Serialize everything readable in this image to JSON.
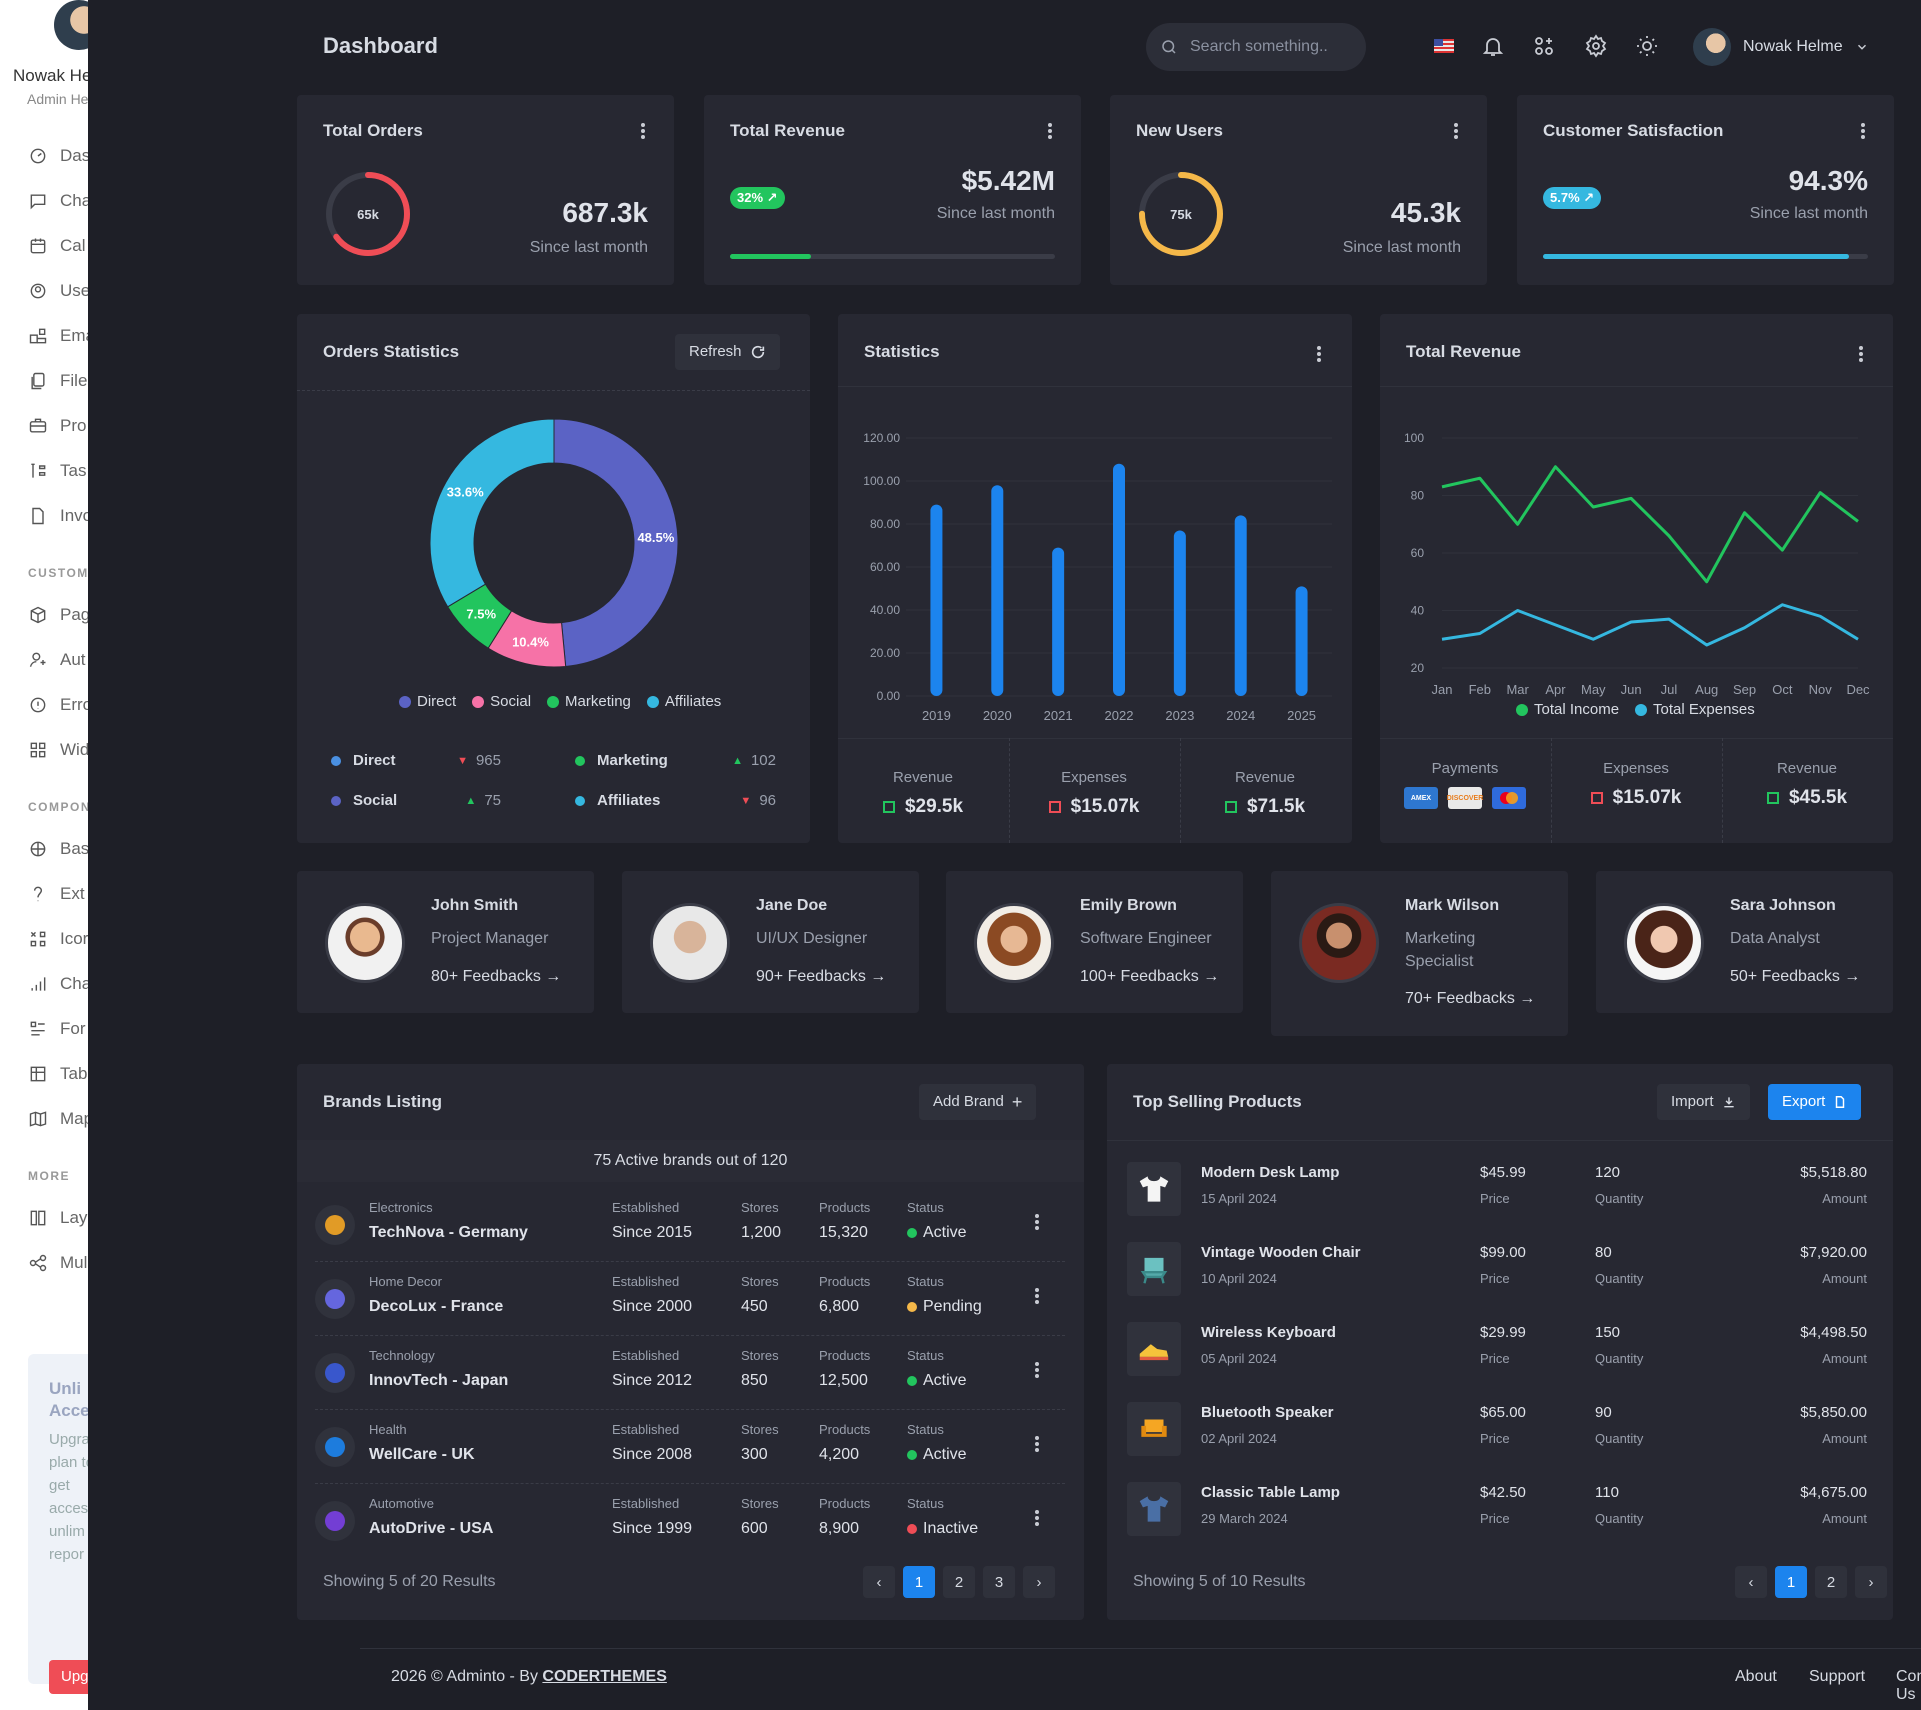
{
  "sidebar": {
    "user_name": "Nowak He",
    "user_role": "Admin He",
    "items": [
      {
        "label": "Das",
        "icon": "dashboard-icon"
      },
      {
        "label": "Cha",
        "icon": "chat-icon"
      },
      {
        "label": "Cal",
        "icon": "calendar-icon"
      },
      {
        "label": "Use",
        "icon": "user-icon"
      },
      {
        "label": "Ema",
        "icon": "email-icon"
      },
      {
        "label": "File",
        "icon": "file-icon"
      },
      {
        "label": "Pro",
        "icon": "briefcase-icon"
      },
      {
        "label": "Tas",
        "icon": "tasks-icon"
      },
      {
        "label": "Invo",
        "icon": "invoice-icon"
      }
    ],
    "section_custom": "CUSTOM",
    "custom_items": [
      {
        "label": "Pag",
        "icon": "box-icon"
      },
      {
        "label": "Aut",
        "icon": "auth-icon"
      },
      {
        "label": "Erro",
        "icon": "error-icon"
      },
      {
        "label": "Wid",
        "icon": "widget-icon"
      }
    ],
    "section_components": "COMPON",
    "component_items": [
      {
        "label": "Bas",
        "icon": "basketball-icon"
      },
      {
        "label": "Ext",
        "icon": "extended-icon"
      },
      {
        "label": "Icor",
        "icon": "icons-icon"
      },
      {
        "label": "Cha",
        "icon": "chart-icon"
      },
      {
        "label": "For",
        "icon": "form-icon"
      },
      {
        "label": "Tab",
        "icon": "table-icon"
      },
      {
        "label": "Map",
        "icon": "map-icon"
      }
    ],
    "section_more": "MORE",
    "more_items": [
      {
        "label": "Lay",
        "icon": "layout-icon"
      },
      {
        "label": "Mul",
        "icon": "share-icon"
      }
    ],
    "promo": {
      "title": "Unli Acce",
      "desc": "Upgra to plan to get acces to unlim repor",
      "button": "Upg"
    }
  },
  "header": {
    "title": "Dashboard",
    "search_placeholder": "Search something..",
    "user_name": "Nowak Helme"
  },
  "kpis": [
    {
      "title": "Total Orders",
      "value": "687.3k",
      "sub": "Since last month",
      "ring_label": "65k",
      "ring_color": "#ef4d56",
      "ring_fraction": 0.65
    },
    {
      "title": "Total Revenue",
      "value": "$5.42M",
      "sub": "Since last month",
      "pill": "32%",
      "pill_color": "#22c55e",
      "bar_fraction": 0.25,
      "bar_color": "#22c55e"
    },
    {
      "title": "New Users",
      "value": "45.3k",
      "sub": "Since last month",
      "ring_label": "75k",
      "ring_color": "#f5b849",
      "ring_fraction": 0.75
    },
    {
      "title": "Customer Satisfaction",
      "value": "94.3%",
      "sub": "Since last month",
      "pill": "5.7%",
      "pill_color": "#35b8e0",
      "bar_fraction": 0.943,
      "bar_color": "#35b8e0"
    }
  ],
  "orders_stats": {
    "title": "Orders Statistics",
    "refresh_label": "Refresh",
    "chart_data": {
      "type": "pie",
      "categories": [
        "Direct",
        "Social",
        "Marketing",
        "Affiliates"
      ],
      "values": [
        48.5,
        10.4,
        7.5,
        33.6
      ],
      "labels": [
        "48.5%",
        "10.4%",
        "7.5%",
        "33.6%"
      ],
      "colors": [
        "#5b63c5",
        "#f672a7",
        "#22c55e",
        "#35b8e0"
      ]
    },
    "rows": [
      {
        "name": "Direct",
        "value": "965",
        "trend": "down",
        "color": "#4a90e2"
      },
      {
        "name": "Marketing",
        "value": "102",
        "trend": "up",
        "color": "#22c55e"
      },
      {
        "name": "Social",
        "value": "75",
        "trend": "up",
        "color": "#5b63c5"
      },
      {
        "name": "Affiliates",
        "value": "96",
        "trend": "down",
        "color": "#35b8e0"
      }
    ]
  },
  "statistics": {
    "title": "Statistics",
    "chart_data": {
      "type": "bar",
      "categories": [
        "2019",
        "2020",
        "2021",
        "2022",
        "2023",
        "2024",
        "2025"
      ],
      "values": [
        89,
        98,
        69,
        108,
        77,
        84,
        51
      ],
      "ylim": [
        0,
        120
      ],
      "yticks": [
        "0.00",
        "20.00",
        "40.00",
        "60.00",
        "80.00",
        "100.00",
        "120.00"
      ],
      "color": "#1c84ee"
    },
    "summary": [
      {
        "label": "Revenue",
        "value": "$29.5k",
        "color": "#22c55e"
      },
      {
        "label": "Expenses",
        "value": "$15.07k",
        "color": "#ef4d56"
      },
      {
        "label": "Revenue",
        "value": "$71.5k",
        "color": "#22c55e"
      }
    ]
  },
  "total_revenue": {
    "title": "Total Revenue",
    "chart_data": {
      "type": "line",
      "x": [
        "Jan",
        "Feb",
        "Mar",
        "Apr",
        "May",
        "Jun",
        "Jul",
        "Aug",
        "Sep",
        "Oct",
        "Nov",
        "Dec"
      ],
      "series": [
        {
          "name": "Total Income",
          "color": "#22c55e",
          "values": [
            83,
            86,
            70,
            90,
            76,
            79,
            66,
            50,
            74,
            61,
            81,
            71
          ]
        },
        {
          "name": "Total Expenses",
          "color": "#35b8e0",
          "values": [
            30,
            32,
            40,
            35,
            30,
            36,
            37,
            28,
            34,
            42,
            38,
            30
          ]
        }
      ],
      "ylim": [
        20,
        100
      ],
      "yticks": [
        "20",
        "40",
        "60",
        "80",
        "100"
      ]
    },
    "summary": [
      {
        "label": "Payments"
      },
      {
        "label": "Expenses",
        "value": "$15.07k",
        "color": "#ef4d56"
      },
      {
        "label": "Revenue",
        "value": "$45.5k",
        "color": "#22c55e"
      }
    ],
    "payments": [
      "AMEX",
      "DISCOVER",
      "MC"
    ]
  },
  "people": [
    {
      "name": "John Smith",
      "role": "Project Manager",
      "feedback": "80+ Feedbacks →"
    },
    {
      "name": "Jane Doe",
      "role": "UI/UX Designer",
      "feedback": "90+ Feedbacks →"
    },
    {
      "name": "Emily Brown",
      "role": "Software Engineer",
      "feedback": "100+ Feedbacks →"
    },
    {
      "name": "Mark Wilson",
      "role": "Marketing Specialist",
      "feedback": "70+ Feedbacks →"
    },
    {
      "name": "Sara Johnson",
      "role": "Data Analyst",
      "feedback": "50+ Feedbacks →"
    }
  ],
  "brands": {
    "title": "Brands Listing",
    "add_label": "Add Brand",
    "subtitle": "75 Active brands out of 120",
    "col_established": "Established",
    "col_stores": "Stores",
    "col_products": "Products",
    "col_status": "Status",
    "rows": [
      {
        "category": "Electronics",
        "name": "TechNova - Germany",
        "established": "Since 2015",
        "stores": "1,200",
        "products": "15,320",
        "status": "Active",
        "status_color": "#22c55e",
        "logo_color": "#f5a623"
      },
      {
        "category": "Home Decor",
        "name": "DecoLux - France",
        "established": "Since 2000",
        "stores": "450",
        "products": "6,800",
        "status": "Pending",
        "status_color": "#f5b849",
        "logo_color": "#6c6cf0"
      },
      {
        "category": "Technology",
        "name": "InnovTech - Japan",
        "established": "Since 2012",
        "stores": "850",
        "products": "12,500",
        "status": "Active",
        "status_color": "#22c55e",
        "logo_color": "#3b5bdb"
      },
      {
        "category": "Health",
        "name": "WellCare - UK",
        "established": "Since 2008",
        "stores": "300",
        "products": "4,200",
        "status": "Active",
        "status_color": "#22c55e",
        "logo_color": "#1c84ee"
      },
      {
        "category": "Automotive",
        "name": "AutoDrive - USA",
        "established": "Since 1999",
        "stores": "600",
        "products": "8,900",
        "status": "Inactive",
        "status_color": "#ef4d56",
        "logo_color": "#7b3fe4"
      }
    ],
    "showing": "Showing 5 of 20 Results",
    "pages": [
      "1",
      "2",
      "3"
    ]
  },
  "products": {
    "title": "Top Selling Products",
    "import_label": "Import",
    "export_label": "Export",
    "price_label": "Price",
    "qty_label": "Quantity",
    "amount_label": "Amount",
    "rows": [
      {
        "name": "Modern Desk Lamp",
        "date": "15 April 2024",
        "price": "$45.99",
        "qty": "120",
        "amount": "$5,518.80",
        "icon": "tshirt-icon"
      },
      {
        "name": "Vintage Wooden Chair",
        "date": "10 April 2024",
        "price": "$99.00",
        "qty": "80",
        "amount": "$7,920.00",
        "icon": "chair-icon"
      },
      {
        "name": "Wireless Keyboard",
        "date": "05 April 2024",
        "price": "$29.99",
        "qty": "150",
        "amount": "$4,498.50",
        "icon": "shoe-icon"
      },
      {
        "name": "Bluetooth Speaker",
        "date": "02 April 2024",
        "price": "$65.00",
        "qty": "90",
        "amount": "$5,850.00",
        "icon": "armchair-icon"
      },
      {
        "name": "Classic Table Lamp",
        "date": "29 March 2024",
        "price": "$42.50",
        "qty": "110",
        "amount": "$4,675.00",
        "icon": "shirt-icon"
      }
    ],
    "showing": "Showing 5 of 10 Results",
    "pages": [
      "1",
      "2"
    ]
  },
  "footer": {
    "copyright": "2026 © Adminto - By ",
    "brand": "CODERTHEMES",
    "links": [
      "About",
      "Support",
      "Contact Us"
    ]
  }
}
